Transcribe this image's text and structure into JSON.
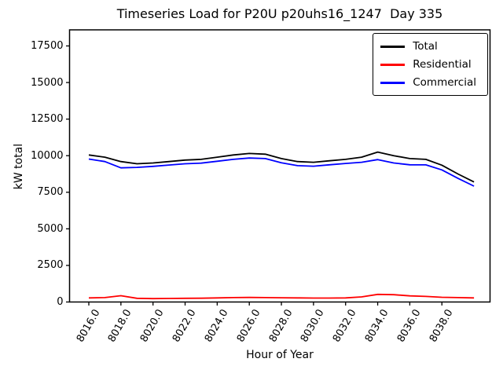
{
  "chart_data": {
    "type": "line",
    "title": "Timeseries Load for P20U p20uhs16_1247  Day 335",
    "xlabel": "Hour of Year",
    "ylabel": "kW total",
    "x": [
      8016,
      8017,
      8018,
      8019,
      8020,
      8021,
      8022,
      8023,
      8024,
      8025,
      8026,
      8027,
      8028,
      8029,
      8030,
      8031,
      8032,
      8033,
      8034,
      8035,
      8036,
      8037,
      8038,
      8039,
      8040
    ],
    "series": [
      {
        "name": "Total",
        "color": "#000000",
        "values": [
          10050,
          9900,
          9600,
          9450,
          9500,
          9600,
          9700,
          9750,
          9900,
          10050,
          10150,
          10100,
          9800,
          9600,
          9550,
          9650,
          9750,
          9900,
          10250,
          10000,
          9800,
          9750,
          9350,
          8750,
          8200
        ]
      },
      {
        "name": "Residential",
        "color": "#ff0000",
        "values": [
          280,
          300,
          430,
          250,
          230,
          240,
          250,
          260,
          280,
          300,
          310,
          300,
          290,
          280,
          270,
          270,
          280,
          350,
          520,
          500,
          420,
          380,
          320,
          300,
          280
        ]
      },
      {
        "name": "Commercial",
        "color": "#0000ff",
        "values": [
          9770,
          9600,
          9170,
          9200,
          9270,
          9360,
          9450,
          9490,
          9620,
          9750,
          9840,
          9800,
          9510,
          9320,
          9280,
          9380,
          9470,
          9550,
          9730,
          9500,
          9380,
          9370,
          9030,
          8450,
          7920
        ]
      }
    ],
    "xlim": [
      8014.8,
      8041.0
    ],
    "ylim": [
      0,
      18600
    ],
    "xticks": [
      8016,
      8018,
      8020,
      8022,
      8024,
      8026,
      8028,
      8030,
      8032,
      8034,
      8036,
      8038
    ],
    "xtick_labels": [
      "8016.0",
      "8018.0",
      "8020.0",
      "8022.0",
      "8024.0",
      "8026.0",
      "8028.0",
      "8030.0",
      "8032.0",
      "8034.0",
      "8036.0",
      "8038.0"
    ],
    "yticks": [
      0,
      2500,
      5000,
      7500,
      10000,
      12500,
      15000,
      17500
    ],
    "ytick_labels": [
      "0",
      "2500",
      "5000",
      "7500",
      "10000",
      "12500",
      "15000",
      "17500"
    ],
    "xtick_rotation_deg": 60,
    "grid": false,
    "line_width": 1.8,
    "axis_color": "#000000",
    "background_color": "#ffffff",
    "legend": {
      "position": "upper right",
      "entries": [
        "Total",
        "Residential",
        "Commercial"
      ]
    }
  }
}
